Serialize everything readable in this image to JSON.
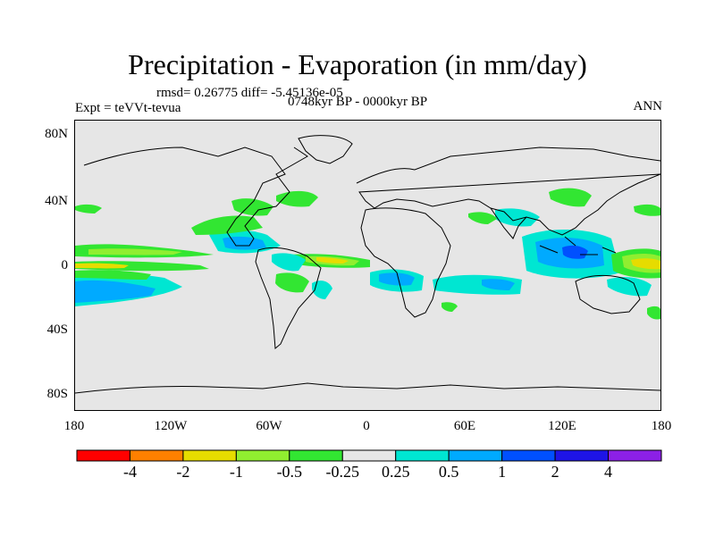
{
  "title": "Precipitation - Evaporation (in mm/day)",
  "stats_text": "rmsd= 0.26775 diff= -5.45136e-05",
  "period_text": "0748kyr BP - 0000kyr BP",
  "expt_text": "Expt = teVVt-tevua",
  "season": "ANN",
  "y_axis_labels": [
    "80N",
    "40N",
    "0",
    "40S",
    "80S"
  ],
  "x_axis_labels": [
    "180",
    "120W",
    "60W",
    "0",
    "60E",
    "120E",
    "180"
  ],
  "colorbar": {
    "labels": [
      "-4",
      "-2",
      "-1",
      "-0.5",
      "-0.25",
      "0.25",
      "0.5",
      "1",
      "2",
      "4"
    ],
    "colors": [
      "#ff0000",
      "#ff8000",
      "#e6dc00",
      "#90ee30",
      "#32e632",
      "#e6e6e6",
      "#00e6d2",
      "#00aaff",
      "#0050ff",
      "#1e14e6",
      "#8c20e6"
    ]
  },
  "colors": {
    "ocean_background": "#e6e6e6",
    "coast": "#000000"
  }
}
